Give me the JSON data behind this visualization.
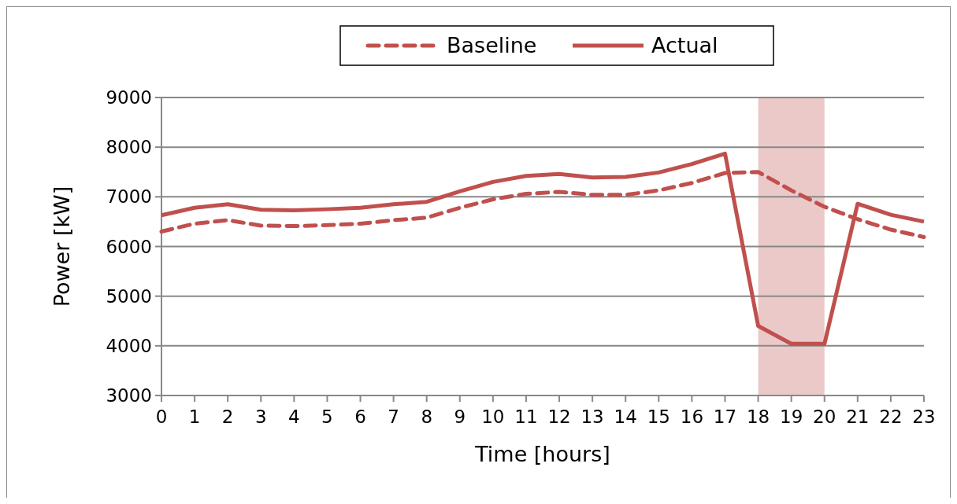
{
  "chart_data": {
    "type": "line",
    "xlabel": "Time [hours]",
    "ylabel": "Power [kW]",
    "x": [
      0,
      1,
      2,
      3,
      4,
      5,
      6,
      7,
      8,
      9,
      10,
      11,
      12,
      13,
      14,
      15,
      16,
      17,
      18,
      19,
      20,
      21,
      22,
      23
    ],
    "xlim": [
      0,
      23
    ],
    "xticks": [
      0,
      1,
      2,
      3,
      4,
      5,
      6,
      7,
      8,
      9,
      10,
      11,
      12,
      13,
      14,
      15,
      16,
      17,
      18,
      19,
      20,
      21,
      22,
      23
    ],
    "ylim": [
      3000,
      9000
    ],
    "yticks": [
      3000,
      4000,
      5000,
      6000,
      7000,
      8000,
      9000
    ],
    "grid": "y",
    "legend": "top",
    "series": [
      {
        "name": "Baseline",
        "color": "#c0504d",
        "line_style": "dashed",
        "values": [
          6300,
          6460,
          6530,
          6420,
          6410,
          6430,
          6460,
          6530,
          6580,
          6780,
          6950,
          7060,
          7100,
          7040,
          7040,
          7130,
          7280,
          7480,
          7500,
          7130,
          6800,
          6550,
          6340,
          6190
        ]
      },
      {
        "name": "Actual",
        "color": "#c0504d",
        "line_style": "solid",
        "values": [
          6630,
          6780,
          6850,
          6740,
          6730,
          6750,
          6780,
          6850,
          6900,
          7110,
          7300,
          7420,
          7460,
          7390,
          7400,
          7490,
          7660,
          7870,
          4400,
          4040,
          4040,
          6860,
          6640,
          6500
        ]
      }
    ],
    "bands": [
      {
        "axis": "x",
        "from": 18,
        "to": 20,
        "color": "#ebc9c9"
      }
    ]
  }
}
